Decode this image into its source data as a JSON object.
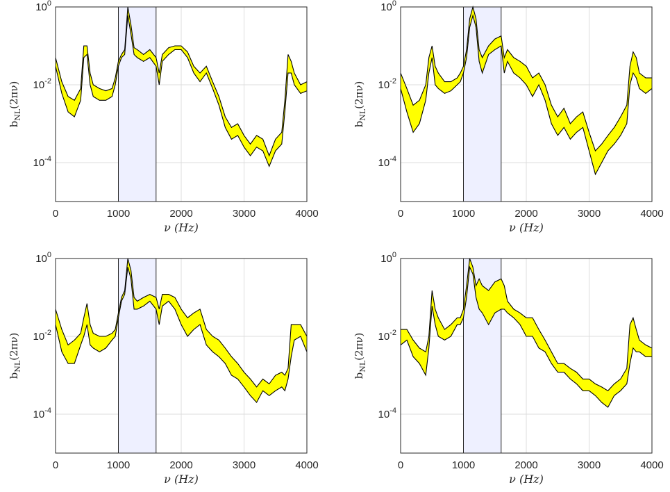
{
  "chart_data": [
    {
      "type": "area",
      "panel": "top-left",
      "xlabel": "ν (Hz)",
      "ylabel": "b_NL(2πν)",
      "xlim": [
        0,
        4000
      ],
      "ylim": [
        1e-05,
        1
      ],
      "yscale": "log",
      "grid": true,
      "x_ticks": [
        "0",
        "1000",
        "2000",
        "3000",
        "4000"
      ],
      "y_ticks": [
        {
          "base": "10",
          "exp": "-4"
        },
        {
          "base": "10",
          "exp": "-2"
        },
        {
          "base": "10",
          "exp": "0"
        }
      ],
      "shaded_band": [
        1000,
        1600
      ],
      "band_color": "#eef0ff",
      "envelope_color": "#ffff00",
      "line_color": "#000000",
      "x": [
        0,
        100,
        200,
        300,
        400,
        450,
        500,
        550,
        600,
        700,
        800,
        900,
        950,
        1000,
        1050,
        1100,
        1150,
        1200,
        1250,
        1300,
        1400,
        1500,
        1600,
        1650,
        1700,
        1800,
        1900,
        2000,
        2100,
        2200,
        2300,
        2400,
        2500,
        2600,
        2700,
        2800,
        2900,
        3000,
        3100,
        3200,
        3300,
        3400,
        3500,
        3600,
        3650,
        3700,
        3750,
        3800,
        3900,
        4000
      ],
      "series": [
        {
          "role": "lower",
          "values": [
            0.03,
            0.006,
            0.002,
            0.0015,
            0.004,
            0.05,
            0.06,
            0.01,
            0.005,
            0.004,
            0.004,
            0.005,
            0.01,
            0.03,
            0.05,
            0.06,
            0.6,
            0.2,
            0.06,
            0.05,
            0.04,
            0.05,
            0.03,
            0.01,
            0.04,
            0.06,
            0.08,
            0.08,
            0.05,
            0.02,
            0.012,
            0.02,
            0.008,
            0.003,
            0.0008,
            0.0004,
            0.0005,
            0.00025,
            0.00015,
            0.00025,
            0.0002,
            8e-05,
            0.0002,
            0.0003,
            0.002,
            0.02,
            0.02,
            0.01,
            0.006,
            0.007
          ]
        },
        {
          "role": "upper",
          "values": [
            0.05,
            0.012,
            0.005,
            0.004,
            0.008,
            0.1,
            0.1,
            0.02,
            0.01,
            0.008,
            0.007,
            0.008,
            0.015,
            0.04,
            0.06,
            0.08,
            1,
            0.35,
            0.09,
            0.08,
            0.06,
            0.08,
            0.05,
            0.02,
            0.06,
            0.09,
            0.1,
            0.1,
            0.07,
            0.03,
            0.02,
            0.03,
            0.012,
            0.005,
            0.0015,
            0.0008,
            0.001,
            0.0005,
            0.0003,
            0.0005,
            0.0004,
            0.00015,
            0.0004,
            0.0006,
            0.004,
            0.06,
            0.04,
            0.02,
            0.01,
            0.012
          ]
        }
      ]
    },
    {
      "type": "area",
      "panel": "top-right",
      "xlabel": "ν (Hz)",
      "ylabel": "b_NL(2πν)",
      "xlim": [
        0,
        4000
      ],
      "ylim": [
        1e-05,
        1
      ],
      "yscale": "log",
      "grid": true,
      "x_ticks": [
        "0",
        "1000",
        "2000",
        "3000",
        "4000"
      ],
      "y_ticks": [
        {
          "base": "10",
          "exp": "-4"
        },
        {
          "base": "10",
          "exp": "-2"
        },
        {
          "base": "10",
          "exp": "0"
        }
      ],
      "shaded_band": [
        1000,
        1600
      ],
      "band_color": "#eef0ff",
      "envelope_color": "#ffff00",
      "line_color": "#000000",
      "x": [
        0,
        100,
        200,
        300,
        400,
        450,
        500,
        550,
        600,
        700,
        800,
        900,
        950,
        1000,
        1050,
        1100,
        1150,
        1200,
        1250,
        1300,
        1400,
        1500,
        1600,
        1650,
        1700,
        1800,
        1900,
        2000,
        2100,
        2200,
        2300,
        2400,
        2500,
        2600,
        2700,
        2800,
        2900,
        3000,
        3100,
        3200,
        3300,
        3400,
        3500,
        3600,
        3650,
        3700,
        3750,
        3800,
        3900,
        4000
      ],
      "series": [
        {
          "role": "lower",
          "values": [
            0.008,
            0.002,
            0.0006,
            0.001,
            0.004,
            0.02,
            0.05,
            0.01,
            0.008,
            0.006,
            0.007,
            0.01,
            0.012,
            0.02,
            0.05,
            0.3,
            0.6,
            0.3,
            0.04,
            0.02,
            0.06,
            0.08,
            0.1,
            0.02,
            0.04,
            0.02,
            0.015,
            0.01,
            0.005,
            0.01,
            0.004,
            0.001,
            0.0005,
            0.0008,
            0.0004,
            0.0006,
            0.0008,
            0.0002,
            5e-05,
            0.0001,
            0.0002,
            0.0003,
            0.0005,
            0.001,
            0.01,
            0.02,
            0.015,
            0.008,
            0.006,
            0.008
          ]
        },
        {
          "role": "upper",
          "values": [
            0.02,
            0.008,
            0.003,
            0.004,
            0.01,
            0.05,
            0.1,
            0.03,
            0.02,
            0.012,
            0.012,
            0.015,
            0.02,
            0.03,
            0.08,
            0.5,
            1,
            0.5,
            0.08,
            0.05,
            0.1,
            0.15,
            0.18,
            0.05,
            0.08,
            0.05,
            0.04,
            0.03,
            0.015,
            0.02,
            0.01,
            0.003,
            0.0015,
            0.0025,
            0.001,
            0.0015,
            0.002,
            0.0006,
            0.0002,
            0.0003,
            0.0005,
            0.0008,
            0.0015,
            0.003,
            0.03,
            0.07,
            0.05,
            0.02,
            0.015,
            0.015
          ]
        }
      ]
    },
    {
      "type": "area",
      "panel": "bottom-left",
      "xlabel": "ν (Hz)",
      "ylabel": "b_NL(2πν)",
      "xlim": [
        0,
        4000
      ],
      "ylim": [
        1e-05,
        1
      ],
      "yscale": "log",
      "grid": true,
      "x_ticks": [
        "0",
        "1000",
        "2000",
        "3000",
        "4000"
      ],
      "y_ticks": [
        {
          "base": "10",
          "exp": "-4"
        },
        {
          "base": "10",
          "exp": "-2"
        },
        {
          "base": "10",
          "exp": "0"
        }
      ],
      "shaded_band": [
        1000,
        1600
      ],
      "band_color": "#eef0ff",
      "envelope_color": "#ffff00",
      "line_color": "#000000",
      "x": [
        0,
        100,
        200,
        300,
        400,
        450,
        500,
        550,
        600,
        700,
        800,
        900,
        950,
        1000,
        1050,
        1100,
        1150,
        1200,
        1250,
        1300,
        1400,
        1500,
        1600,
        1650,
        1700,
        1800,
        1900,
        2000,
        2100,
        2200,
        2300,
        2400,
        2500,
        2600,
        2700,
        2800,
        2900,
        3000,
        3100,
        3200,
        3300,
        3400,
        3500,
        3600,
        3650,
        3700,
        3750,
        3800,
        3900,
        4000
      ],
      "series": [
        {
          "role": "lower",
          "values": [
            0.02,
            0.004,
            0.002,
            0.002,
            0.006,
            0.01,
            0.02,
            0.006,
            0.005,
            0.004,
            0.005,
            0.008,
            0.01,
            0.03,
            0.08,
            0.12,
            0.6,
            0.3,
            0.05,
            0.05,
            0.06,
            0.08,
            0.05,
            0.02,
            0.06,
            0.08,
            0.05,
            0.02,
            0.01,
            0.015,
            0.02,
            0.006,
            0.004,
            0.003,
            0.002,
            0.001,
            0.0008,
            0.0005,
            0.0003,
            0.0002,
            0.0004,
            0.0003,
            0.0004,
            0.0005,
            0.0004,
            0.0008,
            0.003,
            0.008,
            0.01,
            0.004
          ]
        },
        {
          "role": "upper",
          "values": [
            0.05,
            0.015,
            0.006,
            0.008,
            0.012,
            0.03,
            0.07,
            0.02,
            0.012,
            0.01,
            0.01,
            0.012,
            0.015,
            0.04,
            0.1,
            0.15,
            1,
            0.5,
            0.1,
            0.08,
            0.1,
            0.12,
            0.1,
            0.05,
            0.12,
            0.12,
            0.1,
            0.05,
            0.03,
            0.04,
            0.05,
            0.015,
            0.01,
            0.008,
            0.005,
            0.003,
            0.002,
            0.0012,
            0.0008,
            0.0005,
            0.0008,
            0.0006,
            0.001,
            0.0012,
            0.001,
            0.0015,
            0.02,
            0.02,
            0.02,
            0.01
          ]
        }
      ]
    },
    {
      "type": "area",
      "panel": "bottom-right",
      "xlabel": "ν (Hz)",
      "ylabel": "b_NL(2πν)",
      "xlim": [
        0,
        4000
      ],
      "ylim": [
        1e-05,
        1
      ],
      "yscale": "log",
      "grid": true,
      "x_ticks": [
        "0",
        "1000",
        "2000",
        "3000",
        "4000"
      ],
      "y_ticks": [
        {
          "base": "10",
          "exp": "-4"
        },
        {
          "base": "10",
          "exp": "-2"
        },
        {
          "base": "10",
          "exp": "0"
        }
      ],
      "shaded_band": [
        1000,
        1600
      ],
      "band_color": "#eef0ff",
      "envelope_color": "#ffff00",
      "line_color": "#000000",
      "x": [
        0,
        100,
        200,
        300,
        400,
        450,
        500,
        550,
        600,
        700,
        800,
        900,
        950,
        1000,
        1050,
        1100,
        1150,
        1200,
        1250,
        1300,
        1400,
        1500,
        1600,
        1650,
        1700,
        1800,
        1900,
        2000,
        2100,
        2200,
        2300,
        2400,
        2500,
        2600,
        2700,
        2800,
        2900,
        3000,
        3100,
        3200,
        3300,
        3400,
        3500,
        3600,
        3650,
        3700,
        3750,
        3800,
        3900,
        4000
      ],
      "series": [
        {
          "role": "lower",
          "values": [
            0.006,
            0.008,
            0.003,
            0.002,
            0.001,
            0.005,
            0.06,
            0.02,
            0.01,
            0.008,
            0.01,
            0.02,
            0.02,
            0.03,
            0.1,
            0.6,
            0.4,
            0.1,
            0.05,
            0.04,
            0.02,
            0.04,
            0.05,
            0.05,
            0.04,
            0.03,
            0.02,
            0.01,
            0.01,
            0.005,
            0.004,
            0.002,
            0.0012,
            0.0012,
            0.0008,
            0.0006,
            0.0004,
            0.0004,
            0.0003,
            0.0002,
            0.00015,
            0.0003,
            0.0004,
            0.0006,
            0.002,
            0.005,
            0.004,
            0.004,
            0.003,
            0.003
          ]
        },
        {
          "role": "upper",
          "values": [
            0.015,
            0.015,
            0.008,
            0.005,
            0.004,
            0.01,
            0.15,
            0.05,
            0.03,
            0.015,
            0.02,
            0.03,
            0.03,
            0.05,
            0.2,
            1,
            0.6,
            0.2,
            0.3,
            0.2,
            0.15,
            0.25,
            0.3,
            0.2,
            0.08,
            0.05,
            0.04,
            0.03,
            0.03,
            0.015,
            0.008,
            0.004,
            0.002,
            0.002,
            0.0015,
            0.0012,
            0.0008,
            0.0008,
            0.0006,
            0.0005,
            0.0004,
            0.0006,
            0.0008,
            0.0015,
            0.02,
            0.03,
            0.015,
            0.008,
            0.006,
            0.005
          ]
        }
      ]
    }
  ]
}
